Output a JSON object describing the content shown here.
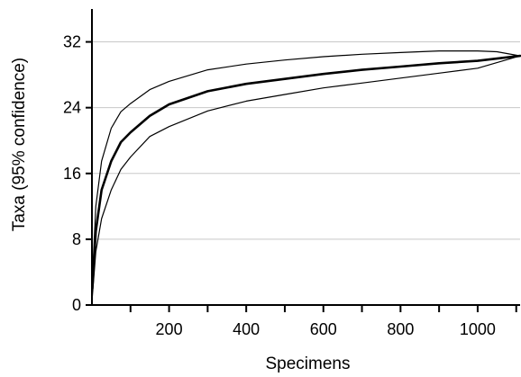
{
  "chart_data": {
    "type": "line",
    "title": "",
    "xlabel": "Specimens",
    "ylabel": "Taxa (95% confidence)",
    "xlim": [
      0,
      1110
    ],
    "ylim": [
      0,
      36
    ],
    "x_ticks": [
      200,
      400,
      600,
      800,
      1000
    ],
    "x_minor_ticks": [
      100,
      300,
      500,
      700,
      900,
      1100
    ],
    "y_ticks": [
      0,
      8,
      16,
      24,
      32
    ],
    "grid": "horizontal lines at y ticks",
    "legend": "none",
    "series": [
      {
        "role": "mean",
        "style": "thick",
        "x": [
          1,
          10,
          25,
          50,
          75,
          100,
          150,
          200,
          300,
          400,
          500,
          600,
          700,
          800,
          900,
          1000,
          1110
        ],
        "y": [
          2,
          9,
          14,
          17.5,
          19.8,
          21,
          23,
          24.4,
          26,
          26.9,
          27.5,
          28.1,
          28.6,
          29,
          29.4,
          29.7,
          30.3
        ]
      },
      {
        "role": "upper 95% bound",
        "style": "thin",
        "x": [
          1,
          10,
          25,
          50,
          75,
          100,
          150,
          200,
          300,
          400,
          500,
          600,
          700,
          800,
          900,
          1000,
          1050,
          1110
        ],
        "y": [
          3,
          12,
          17.5,
          21.5,
          23.5,
          24.5,
          26.2,
          27.2,
          28.6,
          29.3,
          29.8,
          30.2,
          30.5,
          30.7,
          30.9,
          30.9,
          30.8,
          30.3
        ]
      },
      {
        "role": "lower 95% bound",
        "style": "thin",
        "x": [
          1,
          10,
          25,
          50,
          75,
          100,
          150,
          200,
          300,
          400,
          500,
          600,
          700,
          800,
          900,
          1000,
          1110
        ],
        "y": [
          1,
          6.5,
          10.5,
          14,
          16.5,
          18,
          20.5,
          21.7,
          23.6,
          24.8,
          25.6,
          26.4,
          27,
          27.6,
          28.2,
          28.8,
          30.3
        ]
      }
    ],
    "colors": {
      "axis": "#000000",
      "grid": "#c8c8c8",
      "lines": "#000000"
    }
  }
}
